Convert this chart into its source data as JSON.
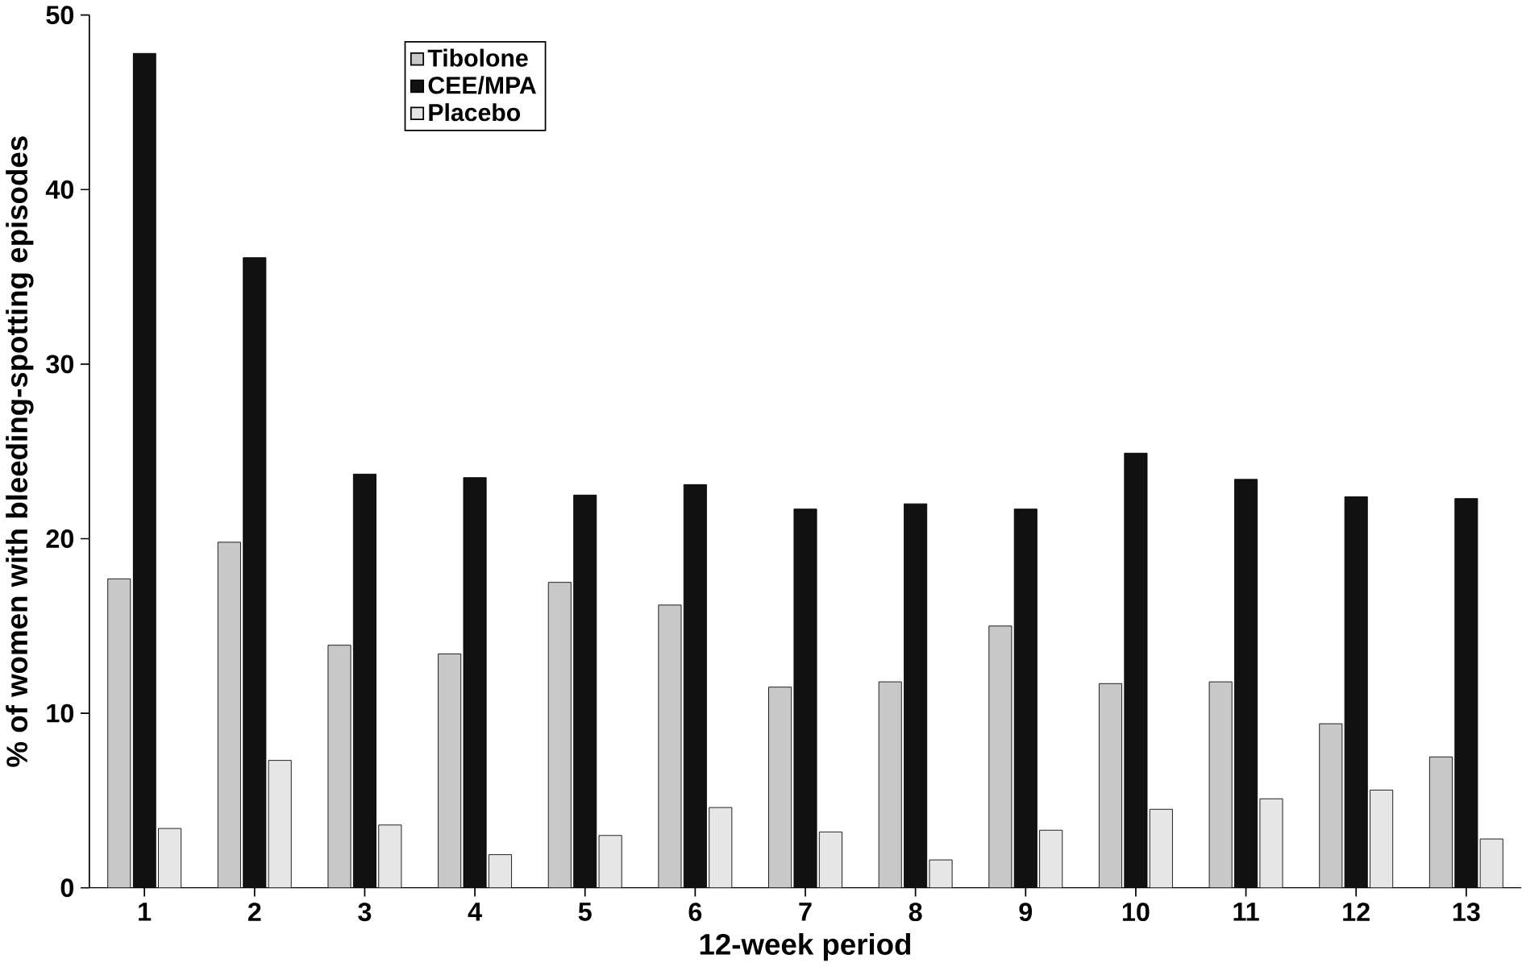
{
  "chart_data": {
    "type": "bar",
    "xlabel": "12-week period",
    "ylabel": "% of women with bleeding-spotting episodes",
    "categories": [
      "1",
      "2",
      "3",
      "4",
      "5",
      "6",
      "7",
      "8",
      "9",
      "10",
      "11",
      "12",
      "13"
    ],
    "series": [
      {
        "name": "Tibolone",
        "color": "#c8c8c8",
        "values": [
          17.7,
          19.8,
          13.9,
          13.4,
          17.5,
          16.2,
          11.5,
          11.8,
          15.0,
          11.7,
          11.8,
          9.4,
          7.5
        ]
      },
      {
        "name": "CEE/MPA",
        "color": "#111111",
        "values": [
          47.8,
          36.1,
          23.7,
          23.5,
          22.5,
          23.1,
          21.7,
          22.0,
          21.7,
          24.9,
          23.4,
          22.4,
          22.3
        ]
      },
      {
        "name": "Placebo",
        "color": "#e6e6e6",
        "values": [
          3.4,
          7.3,
          3.6,
          1.9,
          3.0,
          4.6,
          3.2,
          1.6,
          3.3,
          4.5,
          5.1,
          5.6,
          2.8
        ]
      }
    ],
    "ylim": [
      0,
      50
    ],
    "yticks": [
      0,
      10,
      20,
      30,
      40,
      50
    ],
    "grid": false,
    "legend": "top left"
  }
}
